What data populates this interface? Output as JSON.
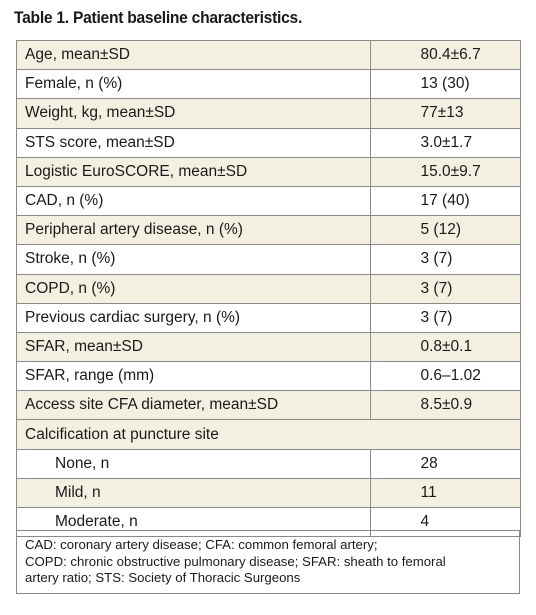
{
  "caption": "Table 1. Patient baseline characteristics.",
  "rows": [
    {
      "label": "Age, mean±SD",
      "value": "80.4±6.7"
    },
    {
      "label": "Female, n (%)",
      "value": "13 (30)"
    },
    {
      "label": "Weight, kg, mean±SD",
      "value": "77±13"
    },
    {
      "label": "STS score, mean±SD",
      "value": "3.0±1.7"
    },
    {
      "label": "Logistic EuroSCORE, mean±SD",
      "value": "15.0±9.7"
    },
    {
      "label": "CAD, n (%)",
      "value": "17 (40)"
    },
    {
      "label": "Peripheral artery disease, n (%)",
      "value": "5 (12)"
    },
    {
      "label": "Stroke, n (%)",
      "value": "3 (7)"
    },
    {
      "label": "COPD, n (%)",
      "value": "3 (7)"
    },
    {
      "label": "Previous cardiac surgery, n (%)",
      "value": "3 (7)"
    },
    {
      "label": "SFAR, mean±SD",
      "value": "0.8±0.1"
    },
    {
      "label": "SFAR, range (mm)",
      "value": "0.6–1.02"
    },
    {
      "label": "Access site CFA diameter, mean±SD",
      "value": "8.5±0.9"
    }
  ],
  "calcification": {
    "heading": "Calcification at puncture site",
    "rows": [
      {
        "label": "None, n",
        "value": "28"
      },
      {
        "label": "Mild, n",
        "value": "11"
      },
      {
        "label": "Moderate, n",
        "value": "4"
      }
    ]
  },
  "footnote_lines": [
    "CAD: coronary artery disease; CFA: common femoral artery;",
    "COPD: chronic obstructive pulmonary disease; SFAR: sheath to femoral",
    "artery ratio; STS: Society of Thoracic Surgeons"
  ]
}
